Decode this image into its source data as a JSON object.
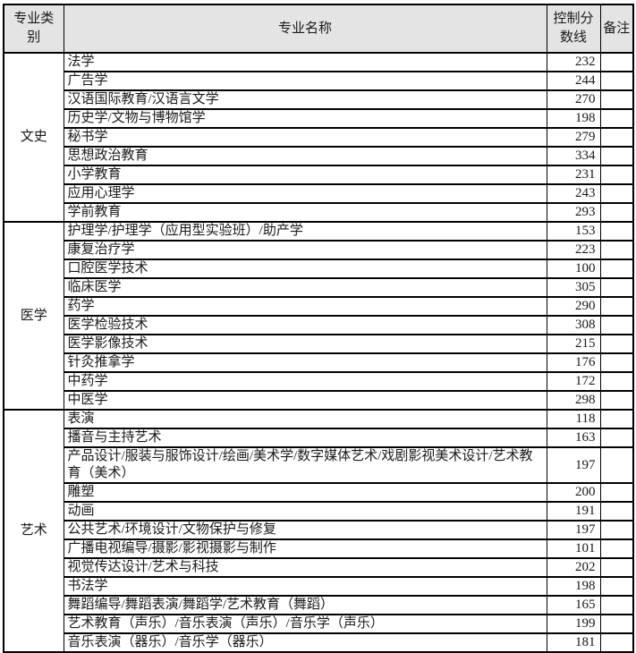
{
  "colors": {
    "header_bg": "#e4e4e4",
    "border": "#000000",
    "text": "#1a1a1a",
    "row_bg": "#ffffff"
  },
  "table": {
    "headers": [
      "专业类\n别",
      "专业名称",
      "控制分\n数线",
      "备注"
    ],
    "groups": [
      {
        "category": "文史",
        "rows": [
          {
            "major": "法学",
            "score": "232",
            "note": ""
          },
          {
            "major": "广告学",
            "score": "244",
            "note": ""
          },
          {
            "major": "汉语国际教育/汉语言文学",
            "score": "270",
            "note": ""
          },
          {
            "major": "历史学/文物与博物馆学",
            "score": "198",
            "note": ""
          },
          {
            "major": "秘书学",
            "score": "279",
            "note": ""
          },
          {
            "major": "思想政治教育",
            "score": "334",
            "note": ""
          },
          {
            "major": "小学教育",
            "score": "231",
            "note": ""
          },
          {
            "major": "应用心理学",
            "score": "243",
            "note": ""
          },
          {
            "major": "学前教育",
            "score": "293",
            "note": ""
          }
        ]
      },
      {
        "category": "医学",
        "rows": [
          {
            "major": "护理学/护理学（应用型实验班）/助产学",
            "score": "153",
            "note": ""
          },
          {
            "major": "康复治疗学",
            "score": "223",
            "note": ""
          },
          {
            "major": "口腔医学技术",
            "score": "100",
            "note": ""
          },
          {
            "major": "临床医学",
            "score": "305",
            "note": ""
          },
          {
            "major": "药学",
            "score": "290",
            "note": ""
          },
          {
            "major": "医学检验技术",
            "score": "308",
            "note": ""
          },
          {
            "major": "医学影像技术",
            "score": "215",
            "note": ""
          },
          {
            "major": "针灸推拿学",
            "score": "176",
            "note": ""
          },
          {
            "major": "中药学",
            "score": "172",
            "note": ""
          },
          {
            "major": "中医学",
            "score": "298",
            "note": ""
          }
        ]
      },
      {
        "category": "艺术",
        "rows": [
          {
            "major": "表演",
            "score": "118",
            "note": ""
          },
          {
            "major": "播音与主持艺术",
            "score": "163",
            "note": ""
          },
          {
            "major": "产品设计/服装与服饰设计/绘画/美术学/数字媒体艺术/戏剧影视美术设计/艺术教育（美术）",
            "score": "197",
            "note": ""
          },
          {
            "major": "雕塑",
            "score": "200",
            "note": ""
          },
          {
            "major": "动画",
            "score": "191",
            "note": ""
          },
          {
            "major": "公共艺术/环境设计/文物保护与修复",
            "score": "197",
            "note": ""
          },
          {
            "major": "广播电视编导/摄影/影视摄影与制作",
            "score": "101",
            "note": ""
          },
          {
            "major": "视觉传达设计/艺术与科技",
            "score": "202",
            "note": ""
          },
          {
            "major": "书法学",
            "score": "198",
            "note": ""
          },
          {
            "major": "舞蹈编导/舞蹈表演/舞蹈学/艺术教育（舞蹈）",
            "score": "165",
            "note": ""
          },
          {
            "major": "艺术教育（声乐）/音乐表演（声乐）/音乐学（声乐）",
            "score": "199",
            "note": ""
          },
          {
            "major": "音乐表演（器乐）/音乐学（器乐）",
            "score": "181",
            "note": ""
          }
        ]
      }
    ]
  }
}
